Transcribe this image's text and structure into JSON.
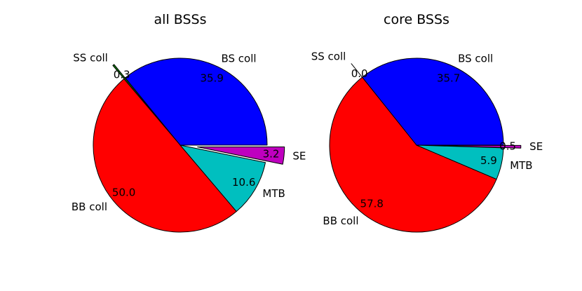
{
  "chart_data": [
    {
      "type": "pie",
      "title": "all BSSs",
      "slices": [
        {
          "label": "BS coll",
          "value": 35.9,
          "value_label": "35.9",
          "color": "#0000ff",
          "exploded": false
        },
        {
          "label": "SS coll",
          "value": 0.3,
          "value_label": "0.3",
          "color": "#008000",
          "exploded": true
        },
        {
          "label": "BB coll",
          "value": 50.0,
          "value_label": "50.0",
          "color": "#ff0000",
          "exploded": false
        },
        {
          "label": "MTB",
          "value": 10.6,
          "value_label": "10.6",
          "color": "#00bfbf",
          "exploded": false
        },
        {
          "label": "SE",
          "value": 3.2,
          "value_label": "3.2",
          "color": "#bf00bf",
          "exploded": true
        }
      ]
    },
    {
      "type": "pie",
      "title": "core BSSs",
      "slices": [
        {
          "label": "BS coll",
          "value": 35.7,
          "value_label": "35.7",
          "color": "#0000ff",
          "exploded": false
        },
        {
          "label": "SS coll",
          "value": 0.0,
          "value_label": "0.0",
          "color": "#008000",
          "exploded": true
        },
        {
          "label": "BB coll",
          "value": 57.8,
          "value_label": "57.8",
          "color": "#ff0000",
          "exploded": false
        },
        {
          "label": "MTB",
          "value": 5.9,
          "value_label": "5.9",
          "color": "#00bfbf",
          "exploded": false
        },
        {
          "label": "SE",
          "value": 0.5,
          "value_label": "0.5",
          "color": "#bf00bf",
          "exploded": true
        }
      ]
    }
  ]
}
